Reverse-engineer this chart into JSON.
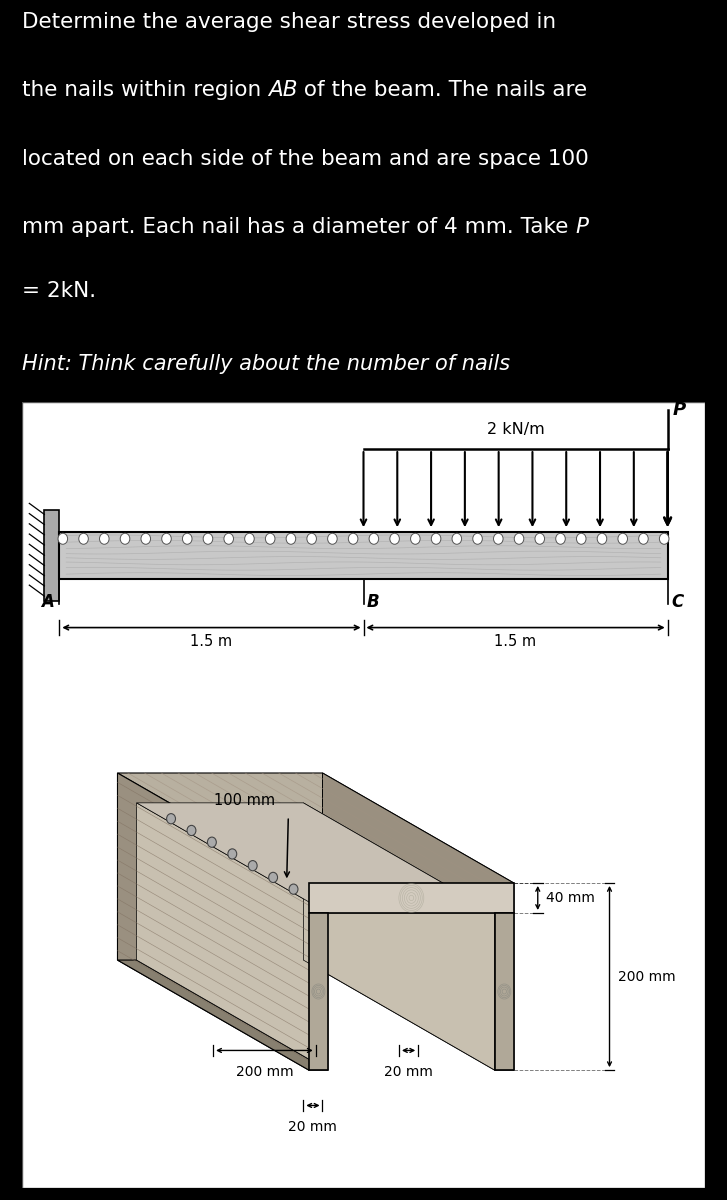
{
  "bg_color": "#000000",
  "text_color": "#ffffff",
  "diagram_bg": "#ffffff",
  "dist_load_label": "2 kN/m",
  "point_load_label": "P",
  "label_A": "A",
  "label_B": "B",
  "label_C": "C",
  "dim_AB": "1.5 m",
  "dim_BC": "1.5 m",
  "nail_spacing_label": "100 mm",
  "dim_40mm": "40 mm",
  "dim_200mm_h": "200 mm",
  "dim_200mm_w": "200 mm",
  "dim_20mm_right": "20 mm",
  "dim_20mm_bottom": "20 mm",
  "wood_top_face": "#b0a090",
  "wood_side_face": "#888070",
  "wood_end_face_light": "#d0c0a8",
  "wood_end_face_dark": "#a89878",
  "wood_grain_color": "#706050",
  "nail_fill": "#909090",
  "beam_body_color": "#c0b8b0",
  "beam_outline": "#333333",
  "wall_color": "#888888",
  "arrow_color": "#000000"
}
